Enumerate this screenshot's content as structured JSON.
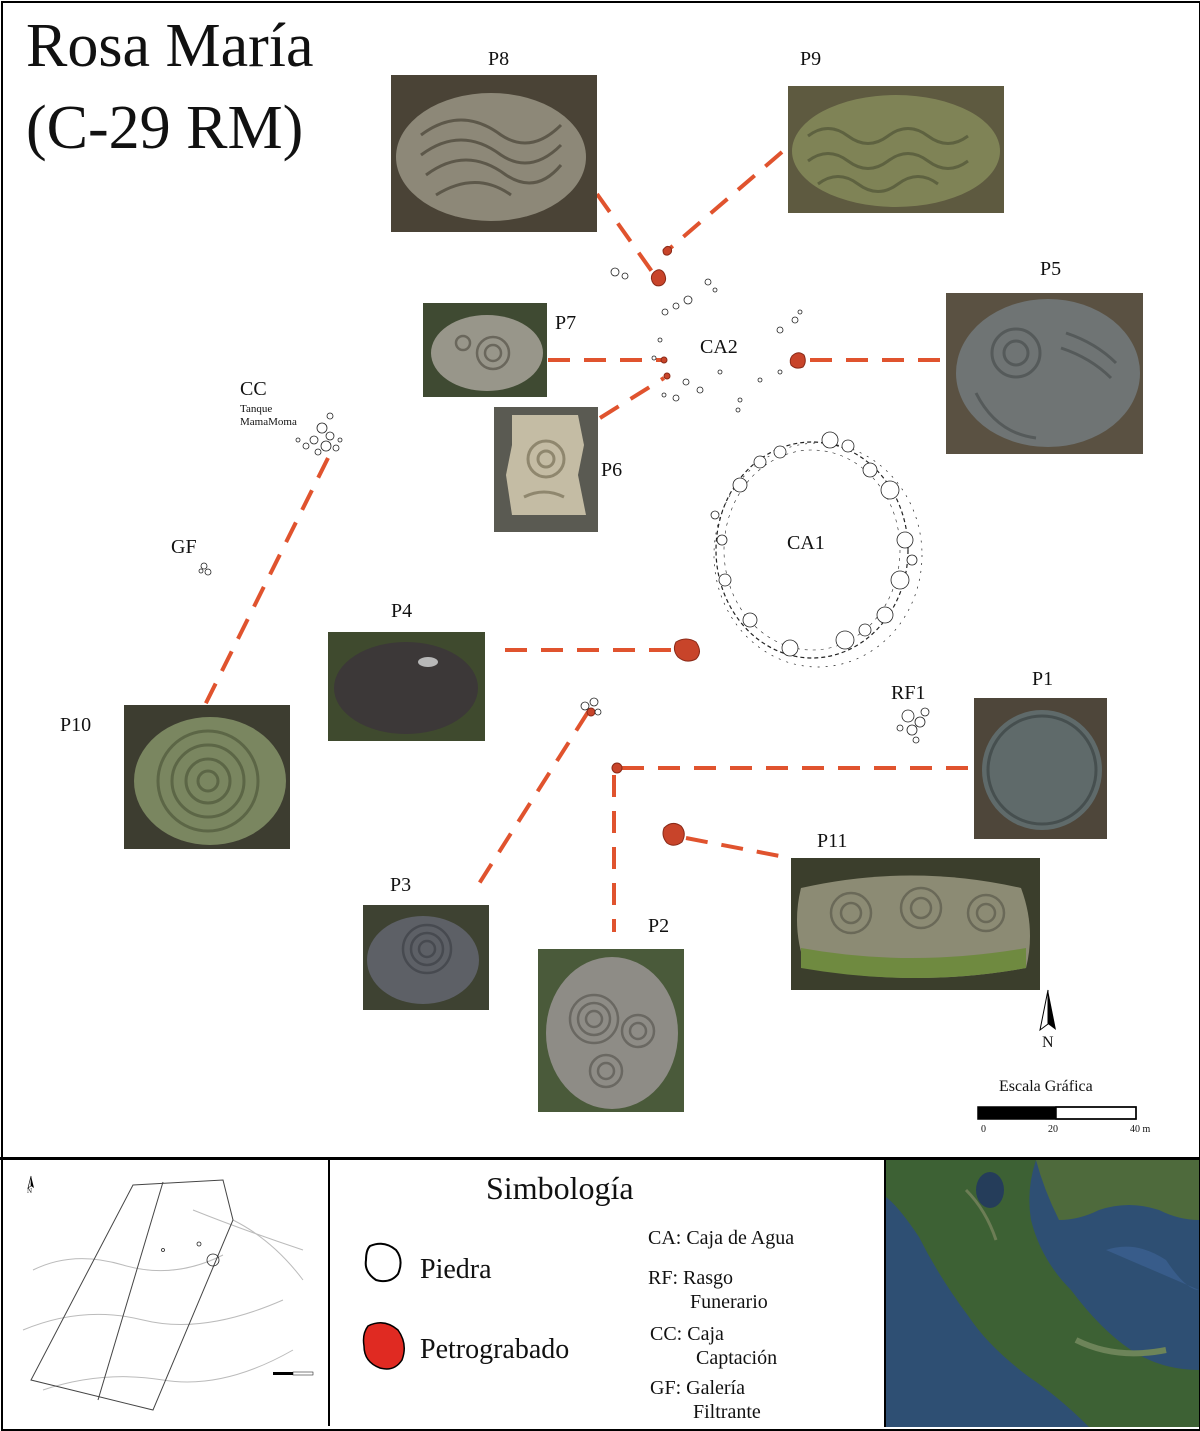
{
  "title": {
    "line1": "Rosa María",
    "line2": "(C-29 RM)"
  },
  "map": {
    "petroglyph_labels": [
      "P1",
      "P2",
      "P3",
      "P4",
      "P5",
      "P6",
      "P7",
      "P8",
      "P9",
      "P10",
      "P11"
    ],
    "features": {
      "ca1": "CA1",
      "ca2": "CA2",
      "rf1": "RF1",
      "cc": "CC",
      "cc_sub1": "Tanque",
      "cc_sub2": "MamaMoma",
      "gf": "GF"
    },
    "north": "N",
    "scale": {
      "title": "Escala Gráfica",
      "ticks": [
        "0",
        "20",
        "40 m"
      ]
    },
    "colors": {
      "petroglyph": "#c8442a",
      "dashed_line": "#e0532e",
      "stone_outline": "#222222"
    }
  },
  "legend": {
    "title": "Simbología",
    "items": [
      {
        "label": "Piedra",
        "icon": "stone-outline-icon"
      },
      {
        "label": "Petrograbado",
        "icon": "petroglyph-red-icon"
      }
    ],
    "abbreviations": [
      {
        "key": "CA:",
        "text": "Caja de Agua",
        "cont": ""
      },
      {
        "key": "RF:",
        "text": "Rasgo",
        "cont": "Funerario"
      },
      {
        "key": "CC:",
        "text": "Caja",
        "cont": "Captación"
      },
      {
        "key": "GF:",
        "text": "Galería",
        "cont": "Filtrante"
      }
    ]
  },
  "inset_map": {
    "north": "N"
  }
}
